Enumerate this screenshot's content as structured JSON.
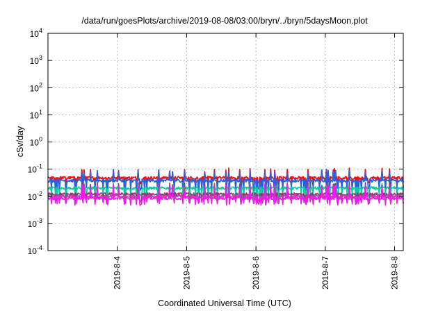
{
  "chart_data": {
    "type": "line",
    "title": "/data/run/goesPlots/archive/2019-08-08/03:00/bryn/../bryn/5daysMoon.plot",
    "xlabel": "Coordinated Universal Time (UTC)",
    "ylabel": "cSv/day",
    "yscale": "log",
    "ylim": [
      0.0001,
      10000
    ],
    "xlim": [
      "2019-08-03T00:00",
      "2019-08-08T03:00"
    ],
    "y_ticks": [
      {
        "value": 0.0001,
        "base": "10",
        "exp": "-4"
      },
      {
        "value": 0.001,
        "base": "10",
        "exp": "-3"
      },
      {
        "value": 0.01,
        "base": "10",
        "exp": "-2"
      },
      {
        "value": 0.1,
        "base": "10",
        "exp": "-1"
      },
      {
        "value": 1,
        "base": "10",
        "exp": "0"
      },
      {
        "value": 10,
        "base": "10",
        "exp": "1"
      },
      {
        "value": 100,
        "base": "10",
        "exp": "2"
      },
      {
        "value": 1000,
        "base": "10",
        "exp": "3"
      },
      {
        "value": 10000,
        "base": "10",
        "exp": "4"
      }
    ],
    "x_ticks": [
      {
        "value": "2019-08-04T00:00",
        "label": "2019-8-4"
      },
      {
        "value": "2019-08-05T00:00",
        "label": "2019-8-5"
      },
      {
        "value": "2019-08-06T00:00",
        "label": "2019-8-6"
      },
      {
        "value": "2019-08-07T00:00",
        "label": "2019-8-7"
      },
      {
        "value": "2019-08-08T00:00",
        "label": "2019-8-8"
      }
    ],
    "grid": true,
    "legend": "none",
    "series": [
      {
        "color": "#e8141c",
        "level": 0.048,
        "dip": 0.032,
        "spike": 0.11
      },
      {
        "color": "#2a60d8",
        "level": 0.038,
        "dip": 0.018,
        "spike": 0.1
      },
      {
        "color": "#10c8a0",
        "level": 0.02,
        "dip": 0.011,
        "spike": 0.03
      },
      {
        "color": "#8a3a72",
        "level": 0.012,
        "dip": 0.007,
        "spike": 0.035
      },
      {
        "color": "#c040b0",
        "level": 0.01,
        "dip": 0.006,
        "spike": 0.03
      },
      {
        "color": "#f018f0",
        "level": 0.0085,
        "dip": 0.0055,
        "spike": 0.03
      }
    ]
  }
}
